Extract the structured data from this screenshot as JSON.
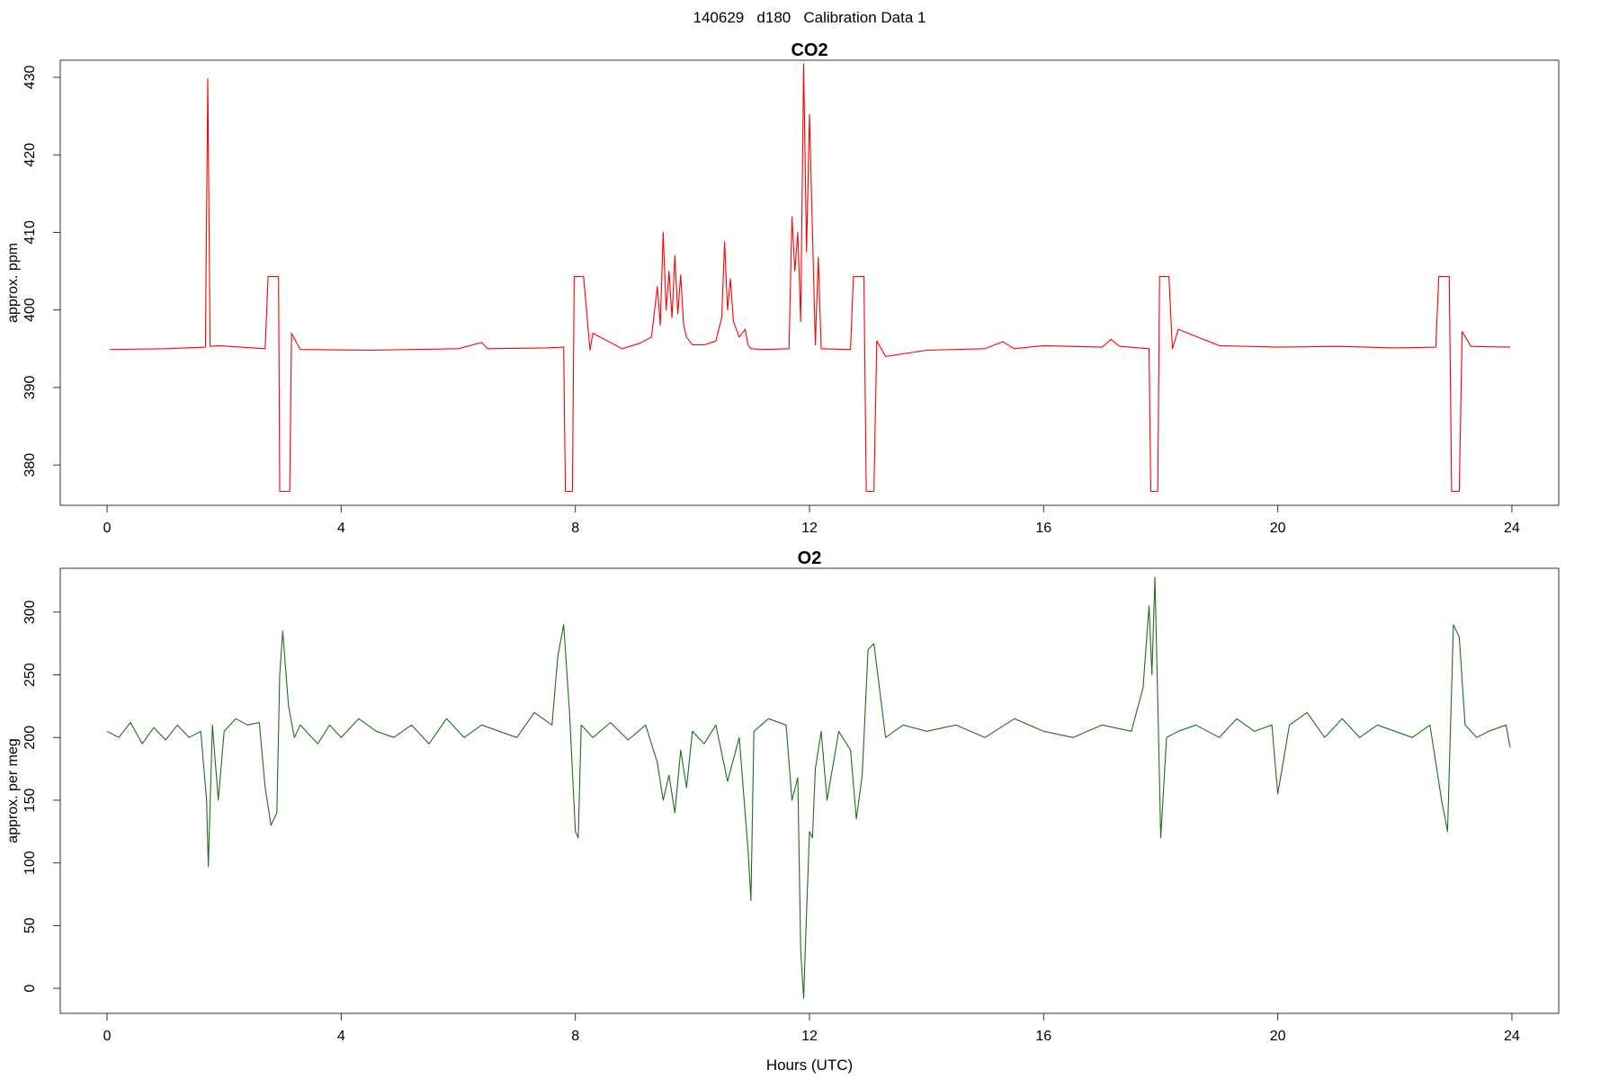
{
  "page": {
    "title": "140629   d180   Calibration Data 1"
  },
  "chart_data": [
    {
      "type": "line",
      "title": "CO2",
      "xlabel": "",
      "ylabel": "approx. ppm",
      "xlim": [
        -0.8,
        24.8
      ],
      "ylim": [
        374.8,
        432.2
      ],
      "x_ticks": [
        0,
        4,
        8,
        12,
        16,
        20,
        24
      ],
      "y_ticks": [
        380,
        390,
        400,
        410,
        420,
        430
      ],
      "grid": false,
      "color": "#ff0000",
      "x": [
        0.05,
        1.0,
        1.68,
        1.72,
        1.76,
        1.9,
        2.7,
        2.75,
        2.93,
        2.95,
        3.12,
        3.15,
        3.3,
        4.5,
        6.0,
        6.4,
        6.5,
        7.5,
        7.8,
        7.83,
        7.95,
        7.98,
        8.14,
        8.25,
        8.3,
        8.8,
        9.1,
        9.3,
        9.4,
        9.45,
        9.5,
        9.55,
        9.6,
        9.65,
        9.7,
        9.75,
        9.8,
        9.85,
        9.9,
        10.0,
        10.2,
        10.4,
        10.5,
        10.55,
        10.6,
        10.65,
        10.7,
        10.8,
        10.9,
        10.95,
        11.0,
        11.2,
        11.65,
        11.7,
        11.75,
        11.8,
        11.85,
        11.9,
        11.95,
        12.0,
        12.1,
        12.15,
        12.2,
        12.7,
        12.75,
        12.93,
        12.97,
        13.1,
        13.15,
        13.3,
        14.0,
        15.0,
        15.3,
        15.5,
        16.0,
        17.0,
        17.15,
        17.3,
        17.8,
        17.83,
        17.95,
        17.98,
        18.14,
        18.2,
        18.3,
        19.0,
        20.0,
        21.0,
        22.0,
        22.7,
        22.75,
        22.93,
        22.97,
        23.1,
        23.15,
        23.3,
        23.97
      ],
      "y": [
        394.9,
        395.0,
        395.2,
        429.8,
        395.3,
        395.4,
        395.0,
        404.3,
        404.3,
        376.6,
        376.6,
        397.0,
        394.9,
        394.8,
        395.0,
        395.8,
        395.0,
        395.1,
        395.2,
        376.6,
        376.6,
        404.3,
        404.3,
        394.8,
        397.0,
        395.0,
        395.7,
        396.5,
        403.0,
        398.0,
        410.0,
        400.0,
        405.0,
        399.0,
        407.0,
        399.5,
        404.5,
        398.0,
        396.5,
        395.5,
        395.5,
        396.0,
        399.0,
        408.8,
        400.0,
        404.0,
        398.5,
        396.5,
        397.5,
        395.5,
        395.0,
        394.9,
        395.0,
        412.0,
        405.0,
        410.0,
        398.5,
        431.7,
        407.5,
        425.2,
        395.5,
        406.8,
        395.0,
        394.9,
        404.3,
        404.3,
        376.6,
        376.6,
        396.0,
        394.0,
        394.8,
        395.0,
        395.9,
        395.0,
        395.4,
        395.2,
        396.2,
        395.3,
        395.0,
        376.6,
        376.6,
        404.3,
        404.3,
        395.0,
        397.5,
        395.4,
        395.2,
        395.3,
        395.1,
        395.2,
        404.3,
        404.3,
        376.6,
        376.6,
        397.2,
        395.3,
        395.2
      ]
    },
    {
      "type": "line",
      "title": "O2",
      "xlabel": "Hours (UTC)",
      "ylabel": "approx. per meg",
      "xlim": [
        -0.8,
        24.8
      ],
      "ylim": [
        -20,
        335
      ],
      "x_ticks": [
        0,
        4,
        8,
        12,
        16,
        20,
        24
      ],
      "y_ticks": [
        0,
        50,
        100,
        150,
        200,
        250,
        300
      ],
      "grid": false,
      "color": "#1e6e1e",
      "x": [
        0.0,
        0.2,
        0.4,
        0.6,
        0.8,
        1.0,
        1.2,
        1.4,
        1.6,
        1.7,
        1.73,
        1.8,
        1.9,
        2.0,
        2.2,
        2.4,
        2.6,
        2.7,
        2.8,
        2.9,
        2.95,
        3.0,
        3.1,
        3.2,
        3.3,
        3.4,
        3.6,
        3.8,
        4.0,
        4.3,
        4.6,
        4.9,
        5.2,
        5.5,
        5.8,
        6.1,
        6.4,
        6.7,
        7.0,
        7.3,
        7.6,
        7.7,
        7.8,
        7.9,
        8.0,
        8.05,
        8.1,
        8.3,
        8.6,
        8.9,
        9.2,
        9.4,
        9.5,
        9.6,
        9.7,
        9.8,
        9.9,
        10.0,
        10.2,
        10.4,
        10.6,
        10.8,
        10.95,
        11.0,
        11.05,
        11.3,
        11.6,
        11.7,
        11.8,
        11.85,
        11.9,
        11.95,
        12.0,
        12.05,
        12.1,
        12.2,
        12.3,
        12.5,
        12.7,
        12.8,
        12.9,
        13.0,
        13.1,
        13.3,
        13.6,
        14.0,
        14.5,
        15.0,
        15.5,
        16.0,
        16.5,
        17.0,
        17.5,
        17.7,
        17.8,
        17.85,
        17.9,
        17.95,
        18.0,
        18.1,
        18.3,
        18.6,
        19.0,
        19.3,
        19.6,
        19.9,
        20.0,
        20.2,
        20.5,
        20.8,
        21.1,
        21.4,
        21.7,
        22.0,
        22.3,
        22.6,
        22.8,
        22.9,
        23.0,
        23.1,
        23.2,
        23.4,
        23.6,
        23.9,
        23.97
      ],
      "y": [
        205,
        200,
        212,
        195,
        208,
        198,
        210,
        200,
        205,
        150,
        97,
        210,
        150,
        205,
        215,
        210,
        212,
        160,
        130,
        140,
        250,
        285,
        225,
        200,
        210,
        205,
        195,
        210,
        200,
        215,
        205,
        200,
        210,
        195,
        215,
        200,
        210,
        205,
        200,
        220,
        210,
        265,
        290,
        220,
        125,
        120,
        210,
        200,
        212,
        198,
        210,
        180,
        150,
        170,
        140,
        190,
        160,
        205,
        195,
        210,
        165,
        200,
        110,
        70,
        205,
        215,
        210,
        150,
        168,
        30,
        -8,
        60,
        125,
        120,
        175,
        205,
        150,
        205,
        190,
        135,
        170,
        270,
        275,
        200,
        210,
        205,
        210,
        200,
        215,
        205,
        200,
        210,
        205,
        240,
        305,
        250,
        328,
        230,
        120,
        200,
        205,
        210,
        200,
        215,
        205,
        210,
        155,
        210,
        220,
        200,
        215,
        200,
        210,
        205,
        200,
        210,
        150,
        125,
        290,
        280,
        210,
        200,
        205,
        210,
        192
      ]
    }
  ]
}
